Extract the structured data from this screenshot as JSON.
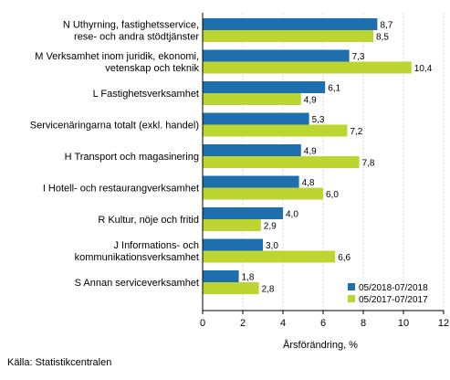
{
  "chart_data": {
    "type": "bar",
    "orientation": "horizontal",
    "categories": [
      [
        "N Uthyrning, fastighetsservice,",
        "rese- och andra stödtjänster"
      ],
      [
        "M Verksamhet inom juridik, ekonomi,",
        "vetenskap och teknik"
      ],
      [
        "L Fastighetsverksamhet"
      ],
      [
        "Servicenäringarna totalt (exkl. handel)"
      ],
      [
        "H Transport och magasinering"
      ],
      [
        "I Hotell- och restaurangverksamhet"
      ],
      [
        "R Kultur, nöje och fritid"
      ],
      [
        "J Informations- och",
        "kommunikationsverksamhet"
      ],
      [
        "S Annan serviceverksamhet"
      ]
    ],
    "series": [
      {
        "name": "05/2018-07/2018",
        "color": "#1f6fae",
        "values": [
          8.7,
          7.3,
          6.1,
          5.3,
          4.9,
          4.8,
          4.0,
          3.0,
          1.8
        ]
      },
      {
        "name": "05/2017-07/2017",
        "color": "#bcd531",
        "values": [
          8.5,
          10.4,
          4.9,
          7.2,
          7.8,
          6.0,
          2.9,
          6.6,
          2.8
        ]
      }
    ],
    "value_labels": [
      [
        "8,7",
        "7,3",
        "6,1",
        "5,3",
        "4,9",
        "4,8",
        "4,0",
        "3,0",
        "1,8"
      ],
      [
        "8,5",
        "10,4",
        "4,9",
        "7,2",
        "7,8",
        "6,0",
        "2,9",
        "6,6",
        "2,8"
      ]
    ],
    "xlabel": "Årsförändring, %",
    "xlim": [
      0,
      12
    ],
    "xticks": [
      0,
      2,
      4,
      6,
      8,
      10,
      12
    ],
    "grid": true,
    "legend_position": "bottom-right"
  },
  "source": "Källa: Statistikcentralen"
}
